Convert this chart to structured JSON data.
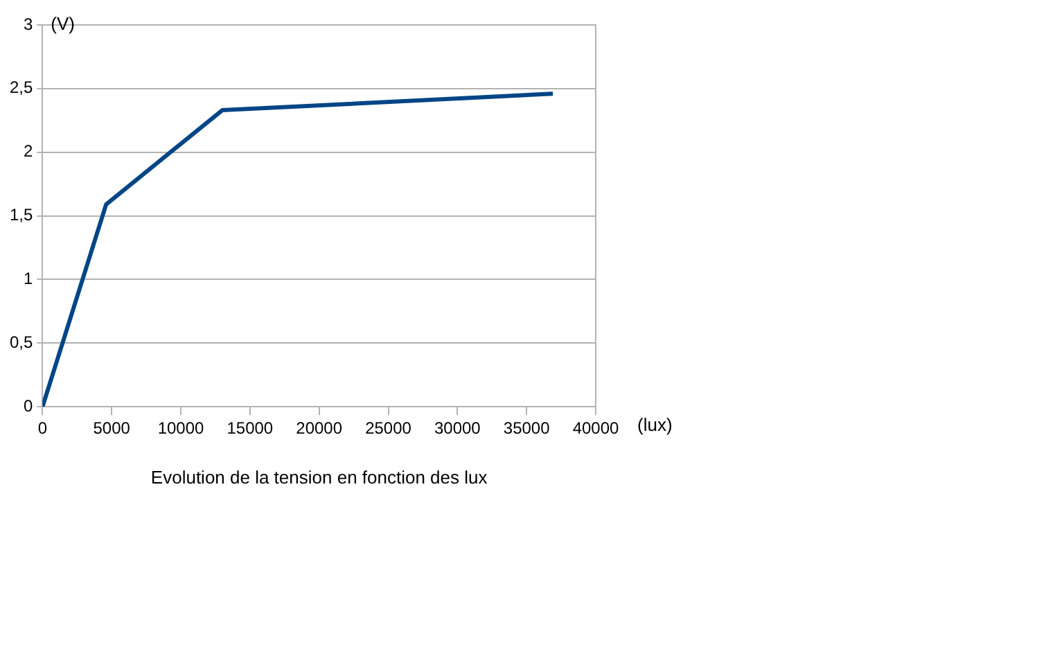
{
  "chart_data": {
    "type": "line",
    "title": "Evolution de la tension en fonction des lux",
    "xlabel": "(lux)",
    "ylabel": "(V)",
    "x": [
      0,
      4600,
      13000,
      36900
    ],
    "series": [
      {
        "color": "#004586",
        "values": [
          0,
          1.59,
          2.33,
          2.46
        ]
      }
    ],
    "xlim": [
      0,
      40000
    ],
    "xticks": [
      0,
      5000,
      10000,
      15000,
      20000,
      25000,
      30000,
      35000,
      40000
    ],
    "ylim": [
      0,
      3
    ],
    "yticks": [
      0,
      {
        "value": 0.5,
        "label": "0,5"
      },
      1,
      {
        "value": 1.5,
        "label": "1,5"
      },
      2,
      {
        "value": 2.5,
        "label": "2,5"
      },
      3
    ],
    "grid": "y",
    "legend": false,
    "marker": "none",
    "line_style": "solid"
  }
}
